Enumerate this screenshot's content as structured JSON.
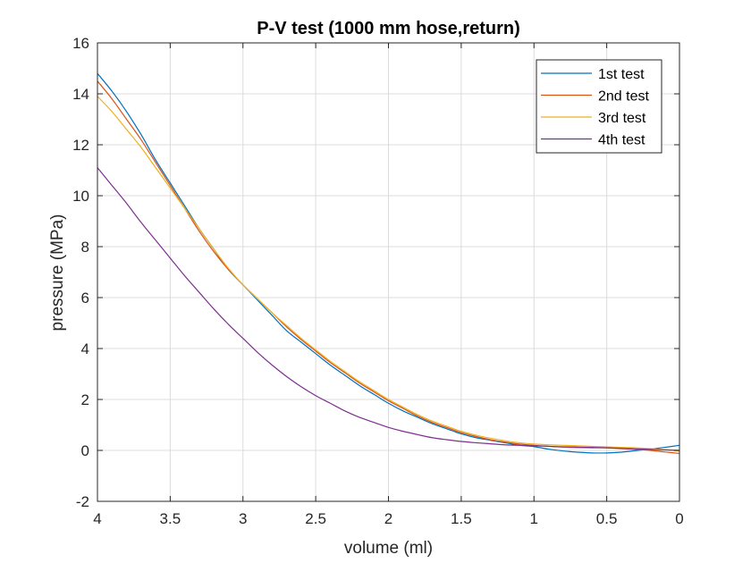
{
  "chart_data": {
    "type": "line",
    "title": "P-V test (1000 mm hose,return)",
    "xlabel": "volume (ml)",
    "ylabel": "pressure (MPa)",
    "xlim": [
      4,
      0
    ],
    "ylim": [
      -2,
      16
    ],
    "x_reversed": true,
    "grid": true,
    "legend_position": "top-right",
    "x_ticks": [
      {
        "value": 4,
        "label": "4"
      },
      {
        "value": 3.5,
        "label": "3.5"
      },
      {
        "value": 3,
        "label": "3"
      },
      {
        "value": 2.5,
        "label": "2.5"
      },
      {
        "value": 2,
        "label": "2"
      },
      {
        "value": 1.5,
        "label": "1.5"
      },
      {
        "value": 1,
        "label": "1"
      },
      {
        "value": 0.5,
        "label": "0.5"
      },
      {
        "value": 0,
        "label": "0"
      }
    ],
    "y_ticks": [
      {
        "value": 16,
        "label": "16"
      },
      {
        "value": 14,
        "label": "14"
      },
      {
        "value": 12,
        "label": "12"
      },
      {
        "value": 10,
        "label": "10"
      },
      {
        "value": 8,
        "label": "8"
      },
      {
        "value": 6,
        "label": "6"
      },
      {
        "value": 4,
        "label": "4"
      },
      {
        "value": 2,
        "label": "2"
      },
      {
        "value": 0,
        "label": "0"
      },
      {
        "value": -2,
        "label": "-2"
      }
    ],
    "series": [
      {
        "name": "1st test",
        "color": "#0072BD",
        "x": [
          4,
          3.9,
          3.8,
          3.7,
          3.6,
          3.5,
          3.4,
          3.3,
          3.2,
          3.1,
          3.0,
          2.9,
          2.8,
          2.7,
          2.6,
          2.5,
          2.4,
          2.3,
          2.2,
          2.1,
          2.0,
          1.9,
          1.8,
          1.7,
          1.6,
          1.5,
          1.4,
          1.3,
          1.2,
          1.1,
          1.0,
          0.9,
          0.8,
          0.7,
          0.6,
          0.5,
          0.4,
          0.3,
          0.2,
          0.1,
          0.0
        ],
        "y": [
          14.8,
          14.1,
          13.3,
          12.4,
          11.4,
          10.5,
          9.6,
          8.7,
          7.9,
          7.1,
          6.5,
          5.9,
          5.3,
          4.7,
          4.25,
          3.8,
          3.35,
          2.95,
          2.55,
          2.2,
          1.85,
          1.55,
          1.3,
          1.05,
          0.85,
          0.65,
          0.5,
          0.4,
          0.3,
          0.2,
          0.15,
          0.05,
          -0.02,
          -0.07,
          -0.1,
          -0.1,
          -0.07,
          -0.01,
          0.05,
          0.12,
          0.2
        ]
      },
      {
        "name": "2nd test",
        "color": "#D95319",
        "x": [
          4,
          3.9,
          3.8,
          3.7,
          3.6,
          3.5,
          3.4,
          3.3,
          3.2,
          3.1,
          3.0,
          2.9,
          2.8,
          2.7,
          2.6,
          2.5,
          2.4,
          2.3,
          2.2,
          2.1,
          2.0,
          1.9,
          1.8,
          1.7,
          1.6,
          1.5,
          1.4,
          1.3,
          1.2,
          1.1,
          1.0,
          0.9,
          0.8,
          0.7,
          0.6,
          0.5,
          0.4,
          0.3,
          0.2,
          0.1,
          0.0
        ],
        "y": [
          14.5,
          13.8,
          13.0,
          12.2,
          11.3,
          10.4,
          9.5,
          8.6,
          7.8,
          7.1,
          6.5,
          5.95,
          5.4,
          4.85,
          4.35,
          3.9,
          3.45,
          3.05,
          2.65,
          2.3,
          1.95,
          1.65,
          1.35,
          1.1,
          0.9,
          0.7,
          0.55,
          0.42,
          0.33,
          0.25,
          0.2,
          0.16,
          0.13,
          0.11,
          0.1,
          0.1,
          0.07,
          0.04,
          0.0,
          -0.06,
          -0.12
        ]
      },
      {
        "name": "3rd test",
        "color": "#EDB120",
        "x": [
          4,
          3.9,
          3.8,
          3.7,
          3.6,
          3.5,
          3.4,
          3.3,
          3.2,
          3.1,
          3.0,
          2.9,
          2.8,
          2.7,
          2.6,
          2.5,
          2.4,
          2.3,
          2.2,
          2.1,
          2.0,
          1.9,
          1.8,
          1.7,
          1.6,
          1.5,
          1.4,
          1.3,
          1.2,
          1.1,
          1.0,
          0.9,
          0.8,
          0.7,
          0.6,
          0.5,
          0.4,
          0.3,
          0.2,
          0.1,
          0.0
        ],
        "y": [
          13.9,
          13.3,
          12.6,
          11.9,
          11.1,
          10.3,
          9.5,
          8.7,
          7.9,
          7.15,
          6.5,
          5.95,
          5.4,
          4.9,
          4.4,
          3.95,
          3.5,
          3.1,
          2.7,
          2.35,
          2.0,
          1.7,
          1.4,
          1.15,
          0.95,
          0.75,
          0.6,
          0.48,
          0.38,
          0.3,
          0.25,
          0.22,
          0.2,
          0.18,
          0.16,
          0.14,
          0.12,
          0.1,
          0.07,
          0.03,
          -0.03
        ]
      },
      {
        "name": "4th test",
        "color": "#7E2F8E",
        "x": [
          4,
          3.9,
          3.8,
          3.7,
          3.6,
          3.5,
          3.4,
          3.3,
          3.2,
          3.1,
          3.0,
          2.9,
          2.8,
          2.7,
          2.6,
          2.5,
          2.4,
          2.3,
          2.2,
          2.1,
          2.0,
          1.9,
          1.8,
          1.7,
          1.6,
          1.5,
          1.4,
          1.3,
          1.2,
          1.1,
          1.0,
          0.9,
          0.8,
          0.7,
          0.6,
          0.5,
          0.4,
          0.3,
          0.2,
          0.1,
          0.0
        ],
        "y": [
          11.1,
          10.4,
          9.7,
          8.95,
          8.25,
          7.55,
          6.85,
          6.2,
          5.55,
          4.95,
          4.4,
          3.85,
          3.35,
          2.9,
          2.5,
          2.15,
          1.85,
          1.55,
          1.3,
          1.1,
          0.9,
          0.75,
          0.62,
          0.5,
          0.42,
          0.35,
          0.3,
          0.26,
          0.22,
          0.2,
          0.18,
          0.16,
          0.14,
          0.13,
          0.12,
          0.1,
          0.08,
          0.06,
          0.04,
          0.02,
          0.0
        ]
      }
    ]
  }
}
